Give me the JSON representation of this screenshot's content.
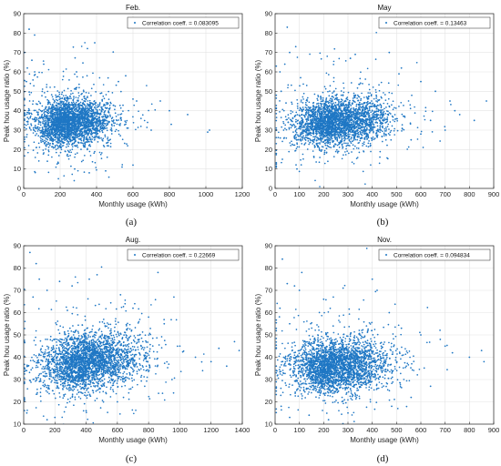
{
  "colors": {
    "marker": "#1f77c4",
    "grid": "#e3e3e3",
    "axis": "#262626"
  },
  "chart_data": [
    {
      "type": "scatter",
      "title": "Feb.",
      "caption": "(a)",
      "xlabel": "Monthly usage (kWh)",
      "ylabel": "Peak hou usage ratio (%)",
      "xlim": [
        0,
        1200
      ],
      "ylim": [
        0,
        90
      ],
      "xticks": [
        0,
        200,
        400,
        600,
        800,
        1000,
        1200
      ],
      "yticks": [
        0,
        10,
        20,
        30,
        40,
        50,
        60,
        70,
        80,
        90
      ],
      "grid": true,
      "legend": {
        "label": "Correlation coeff. = 0.083095",
        "position": "top-right"
      },
      "correlation": 0.083095,
      "cloud": {
        "center": [
          250,
          34
        ],
        "spread": [
          100,
          6
        ]
      },
      "points": [
        [
          5,
          70
        ],
        [
          30,
          82
        ],
        [
          60,
          79
        ],
        [
          20,
          62
        ],
        [
          15,
          55
        ],
        [
          45,
          66
        ],
        [
          110,
          64
        ],
        [
          390,
          75
        ],
        [
          350,
          72
        ],
        [
          290,
          60
        ],
        [
          520,
          55
        ],
        [
          560,
          58
        ],
        [
          600,
          46
        ],
        [
          620,
          45
        ],
        [
          700,
          30
        ],
        [
          750,
          45
        ],
        [
          800,
          40
        ],
        [
          810,
          33
        ],
        [
          1020,
          30
        ],
        [
          1010,
          29
        ],
        [
          360,
          8
        ],
        [
          540,
          11
        ],
        [
          600,
          12
        ],
        [
          450,
          9
        ],
        [
          280,
          10
        ],
        [
          130,
          14
        ],
        [
          900,
          38
        ],
        [
          680,
          34
        ]
      ]
    },
    {
      "type": "scatter",
      "title": "May",
      "caption": "(b)",
      "xlabel": "Monthly usage (kWh)",
      "ylabel": "Peak hou usage ratio (%)",
      "xlim": [
        0,
        900
      ],
      "ylim": [
        0,
        90
      ],
      "xticks": [
        0,
        100,
        200,
        300,
        400,
        500,
        600,
        700,
        800,
        900
      ],
      "yticks": [
        0,
        10,
        20,
        30,
        40,
        50,
        60,
        70,
        80,
        90
      ],
      "grid": true,
      "legend": {
        "label": "Correlation coeff. = 0.13463",
        "position": "top-right"
      },
      "correlation": 0.13463,
      "cloud": {
        "center": [
          250,
          34
        ],
        "spread": [
          95,
          6
        ]
      },
      "points": [
        [
          50,
          83
        ],
        [
          85,
          73
        ],
        [
          60,
          70
        ],
        [
          40,
          64
        ],
        [
          20,
          60
        ],
        [
          105,
          57
        ],
        [
          25,
          50
        ],
        [
          330,
          69
        ],
        [
          310,
          67
        ],
        [
          470,
          70
        ],
        [
          520,
          62
        ],
        [
          600,
          55
        ],
        [
          660,
          50
        ],
        [
          720,
          45
        ],
        [
          740,
          40
        ],
        [
          820,
          35
        ],
        [
          870,
          45
        ],
        [
          700,
          30
        ],
        [
          640,
          35
        ],
        [
          30,
          15
        ],
        [
          90,
          10
        ],
        [
          160,
          16
        ],
        [
          250,
          19
        ],
        [
          560,
          25
        ],
        [
          600,
          28
        ],
        [
          760,
          38
        ],
        [
          510,
          59
        ],
        [
          45,
          44
        ]
      ]
    },
    {
      "type": "scatter",
      "title": "Aug.",
      "caption": "(c)",
      "xlabel": "Monthly usage (kWh)",
      "ylabel": "Peak hou usage ratio (%)",
      "xlim": [
        0,
        1400
      ],
      "ylim": [
        10,
        90
      ],
      "xticks": [
        0,
        200,
        400,
        600,
        800,
        1000,
        1200,
        1400
      ],
      "yticks": [
        10,
        20,
        30,
        40,
        50,
        60,
        70,
        80,
        90
      ],
      "grid": true,
      "legend": {
        "label": "Correlation coeff. = 0.22669",
        "position": "top-right"
      },
      "correlation": 0.22669,
      "cloud": {
        "center": [
          400,
          38
        ],
        "spread": [
          160,
          6.5
        ]
      },
      "points": [
        [
          40,
          87
        ],
        [
          80,
          82
        ],
        [
          100,
          75
        ],
        [
          60,
          67
        ],
        [
          150,
          70
        ],
        [
          230,
          74
        ],
        [
          420,
          75
        ],
        [
          470,
          77
        ],
        [
          310,
          72
        ],
        [
          280,
          61
        ],
        [
          620,
          68
        ],
        [
          700,
          62
        ],
        [
          800,
          58
        ],
        [
          900,
          55
        ],
        [
          860,
          78
        ],
        [
          1000,
          45
        ],
        [
          1100,
          40
        ],
        [
          1200,
          38
        ],
        [
          1350,
          47
        ],
        [
          1300,
          36
        ],
        [
          1380,
          43
        ],
        [
          1250,
          44
        ],
        [
          20,
          15
        ],
        [
          150,
          12
        ],
        [
          200,
          13
        ],
        [
          400,
          16
        ],
        [
          600,
          20
        ],
        [
          950,
          30
        ]
      ]
    },
    {
      "type": "scatter",
      "title": "Nov.",
      "caption": "(d)",
      "xlabel": "Monthly usage (kWh)",
      "ylabel": "Peak hou usage ratio (%)",
      "xlim": [
        0,
        900
      ],
      "ylim": [
        10,
        90
      ],
      "xticks": [
        0,
        100,
        200,
        300,
        400,
        500,
        600,
        700,
        800,
        900
      ],
      "yticks": [
        10,
        20,
        30,
        40,
        50,
        60,
        70,
        80,
        90
      ],
      "grid": true,
      "legend": {
        "label": "Correlation coeff. = 0.094834",
        "position": "top-right"
      },
      "correlation": 0.094834,
      "cloud": {
        "center": [
          250,
          36
        ],
        "spread": [
          100,
          6
        ]
      },
      "points": [
        [
          30,
          84
        ],
        [
          50,
          73
        ],
        [
          80,
          72
        ],
        [
          110,
          78
        ],
        [
          100,
          70
        ],
        [
          20,
          62
        ],
        [
          60,
          55
        ],
        [
          200,
          66
        ],
        [
          280,
          71
        ],
        [
          400,
          75
        ],
        [
          420,
          70
        ],
        [
          470,
          60
        ],
        [
          520,
          53
        ],
        [
          600,
          50
        ],
        [
          680,
          48
        ],
        [
          700,
          45
        ],
        [
          730,
          42
        ],
        [
          800,
          40
        ],
        [
          860,
          38
        ],
        [
          850,
          43
        ],
        [
          25,
          18
        ],
        [
          60,
          13
        ],
        [
          140,
          14
        ],
        [
          220,
          12
        ],
        [
          300,
          15
        ],
        [
          480,
          18
        ],
        [
          560,
          22
        ],
        [
          640,
          27
        ]
      ]
    }
  ]
}
